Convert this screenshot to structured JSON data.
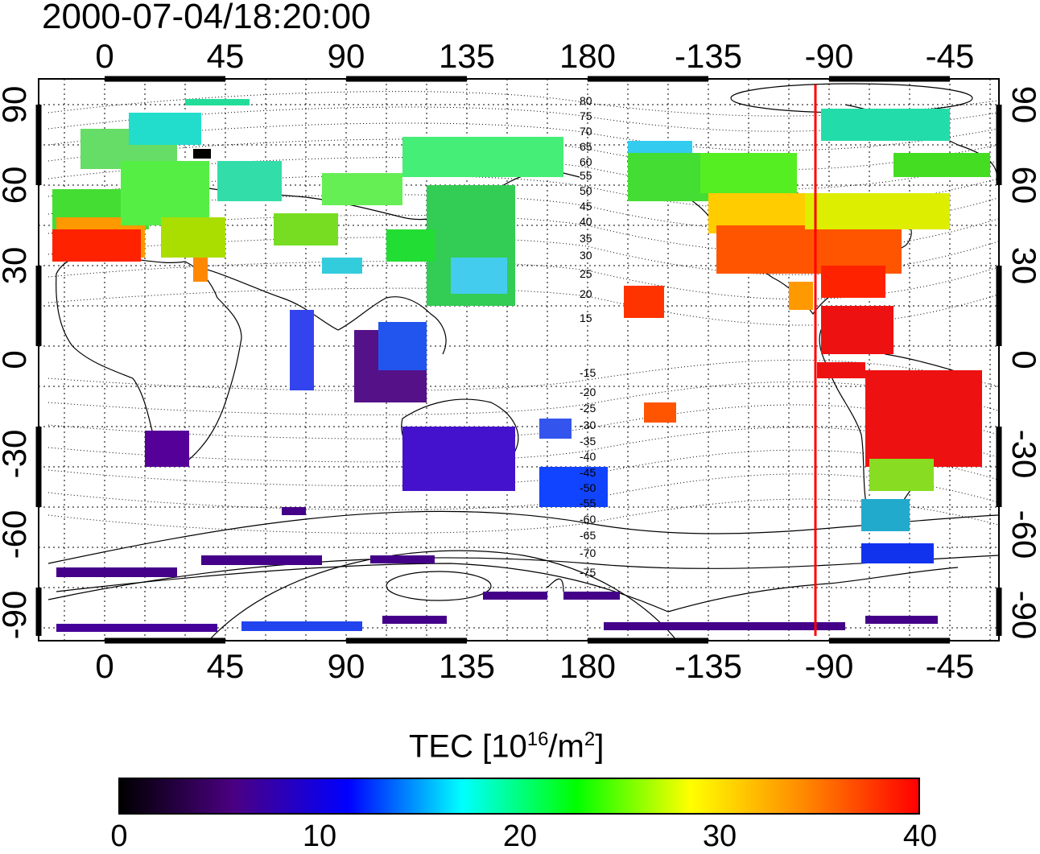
{
  "title": "2000-07-04/18:20:00",
  "map": {
    "top_axis_ticks": [
      "0",
      "45",
      "90",
      "135",
      "180",
      "-135",
      "-90",
      "-45"
    ],
    "bottom_axis_ticks": [
      "0",
      "45",
      "90",
      "135",
      "180",
      "-135",
      "-90",
      "-45"
    ],
    "left_axis_ticks": [
      "90",
      "60",
      "30",
      "0",
      "-30",
      "-60",
      "-90"
    ],
    "right_axis_ticks": [
      "90",
      "60",
      "30",
      "0",
      "-30",
      "-60",
      "-90"
    ],
    "contour_labels": [
      "80",
      "75",
      "70",
      "65",
      "60",
      "55",
      "50",
      "45",
      "40",
      "35",
      "30",
      "25",
      "20",
      "15",
      "-15",
      "-20",
      "-25",
      "-30",
      "-35",
      "-40",
      "-45",
      "-50",
      "-55",
      "-60",
      "-65",
      "-70",
      "-75"
    ],
    "meridian_line_color": "#ff0000",
    "meridian_longitude": -95
  },
  "colorbar": {
    "title_prefix": "TEC  [10",
    "title_exp1": "16",
    "title_mid": "/m",
    "title_exp2": "2",
    "title_suffix": "]",
    "ticks": [
      "0",
      "10",
      "20",
      "30",
      "40"
    ],
    "colors": [
      "#000000",
      "#4b0082",
      "#0000ff",
      "#00ffff",
      "#00ff00",
      "#ffff00",
      "#ff8800",
      "#ff0000"
    ]
  }
}
